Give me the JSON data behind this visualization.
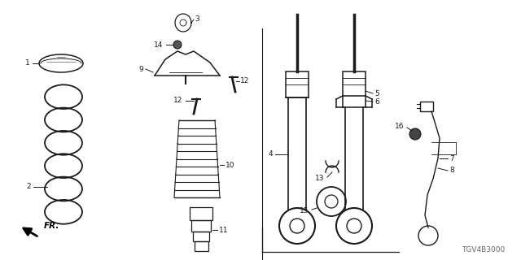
{
  "bg_color": "#ffffff",
  "line_color": "#1a1a1a",
  "gray_color": "#666666",
  "diagram_code": "TGV4B3000",
  "fig_w": 6.4,
  "fig_h": 3.2,
  "dpi": 100
}
